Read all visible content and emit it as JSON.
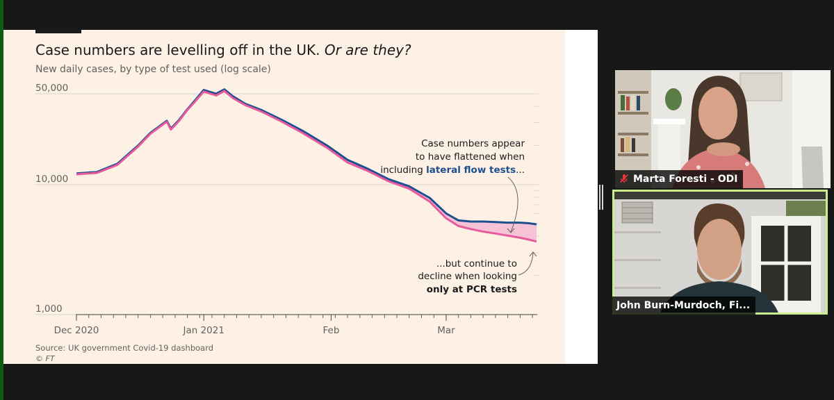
{
  "chart_data": {
    "type": "line",
    "title": "Case numbers are levelling off in the UK.",
    "title_emphasis": "Or are they?",
    "subtitle": "New daily cases, by type of test used (log scale)",
    "y_scale": "log",
    "ylim": [
      1000,
      50000
    ],
    "y_ticks": [
      {
        "value": 1000,
        "label": "1,000"
      },
      {
        "value": 10000,
        "label": "10,000"
      },
      {
        "value": 50000,
        "label": "50,000"
      }
    ],
    "x_ticks": [
      "Dec 2020",
      "Jan 2021",
      "Feb",
      "Mar"
    ],
    "x_dates": [
      "2020-12-01",
      "2020-12-06",
      "2020-12-11",
      "2020-12-16",
      "2020-12-19",
      "2020-12-23",
      "2020-12-24",
      "2020-12-26",
      "2020-12-28",
      "2020-12-30",
      "2021-01-01",
      "2021-01-04",
      "2021-01-06",
      "2021-01-08",
      "2021-01-11",
      "2021-01-15",
      "2021-01-20",
      "2021-01-25",
      "2021-01-31",
      "2021-02-05",
      "2021-02-10",
      "2021-02-15",
      "2021-02-20",
      "2021-02-25",
      "2021-03-01",
      "2021-03-04",
      "2021-03-07",
      "2021-03-10",
      "2021-03-13",
      "2021-03-16",
      "2021-03-19",
      "2021-03-21",
      "2021-03-23"
    ],
    "series": [
      {
        "name": "lateral flow tests",
        "color": "#1d4e8f",
        "values": [
          12200,
          12500,
          14500,
          20000,
          25000,
          31000,
          27000,
          31500,
          38000,
          45000,
          53500,
          50000,
          54000,
          48000,
          42000,
          37500,
          31500,
          26000,
          20000,
          15500,
          13200,
          11000,
          9700,
          7900,
          6000,
          5300,
          5200,
          5200,
          5150,
          5100,
          5100,
          5050,
          4950
        ]
      },
      {
        "name": "only at PCR tests",
        "color": "#e75a9c",
        "values": [
          12000,
          12300,
          14200,
          19600,
          24600,
          30500,
          26500,
          31000,
          37500,
          44000,
          52000,
          48500,
          52500,
          46500,
          41000,
          36500,
          30500,
          25000,
          19200,
          14800,
          12700,
          10600,
          9300,
          7400,
          5500,
          4800,
          4550,
          4350,
          4200,
          4050,
          3900,
          3780,
          3650
        ]
      }
    ],
    "annotations": [
      {
        "lines": [
          "Case numbers appear",
          "to have flattened when"
        ],
        "prefix": "including ",
        "highlight": "lateral flow tests",
        "suffix": "..."
      },
      {
        "lines": [
          "...but continue to",
          "decline when looking"
        ],
        "highlight": "only at PCR tests"
      }
    ],
    "source": "Source: UK government Covid-19 dashboard",
    "copyright": "© FT",
    "background": "#fdf1e6"
  },
  "participants": [
    {
      "name": "Marta Foresti - ODI",
      "muted": true,
      "active": false
    },
    {
      "name": "John Burn-Murdoch, Fi...",
      "muted": false,
      "active": true
    }
  ]
}
